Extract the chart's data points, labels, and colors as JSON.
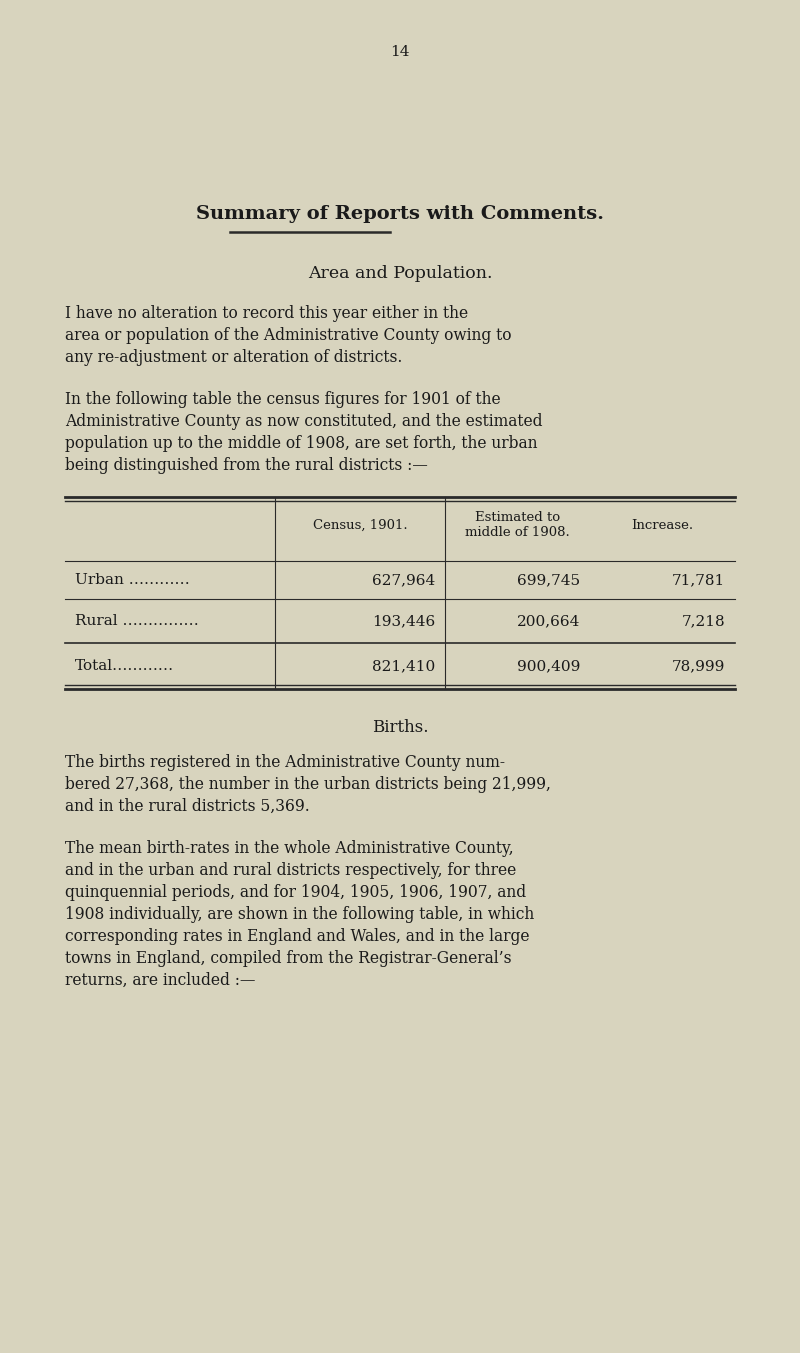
{
  "background_color": "#d8d4be",
  "page_number": "14",
  "title": "Summary of Reports with Comments.",
  "section1_heading": "Area and Population.",
  "para1": "I have no alteration to record this year either in the\narea or population of the Administrative County owing to\nany re-adjustment or alteration of districts.",
  "para2": "In the following table the census figures for 1901 of the\nAdministrative County as now constituted, and the estimated\npopulation up to the middle of 1908, are set forth, the urban\nbeing distinguished from the rural districts :—",
  "table_headers": [
    "",
    "Census, 1901.",
    "Estimated to\nmiddle of 1908.",
    "Increase."
  ],
  "table_rows": [
    [
      "Urban …………",
      "627,964",
      "699,745",
      "71,781"
    ],
    [
      "Rural ……………",
      "193,446",
      "200,664",
      "7,218"
    ],
    [
      "Total…………",
      "821,410",
      "900,409",
      "78,999"
    ]
  ],
  "section2_heading": "Births.",
  "para3": "The births registered in the Administrative County num-\nbered 27,368, the number in the urban districts being 21,999,\nand in the rural districts 5,369.",
  "para4": "The mean birth-rates in the whole Administrative County,\nand in the urban and rural districts respectively, for three\nquinquennial periods, and for 1904, 1905, 1906, 1907, and\n1908 individually, are shown in the following table, in which\ncorresponding rates in England and Wales, and in the large\ntowns in England, compiled from the Registrar-General’s\nreturns, are included :—",
  "text_color": "#1a1a1a",
  "line_color": "#2a2a2a"
}
